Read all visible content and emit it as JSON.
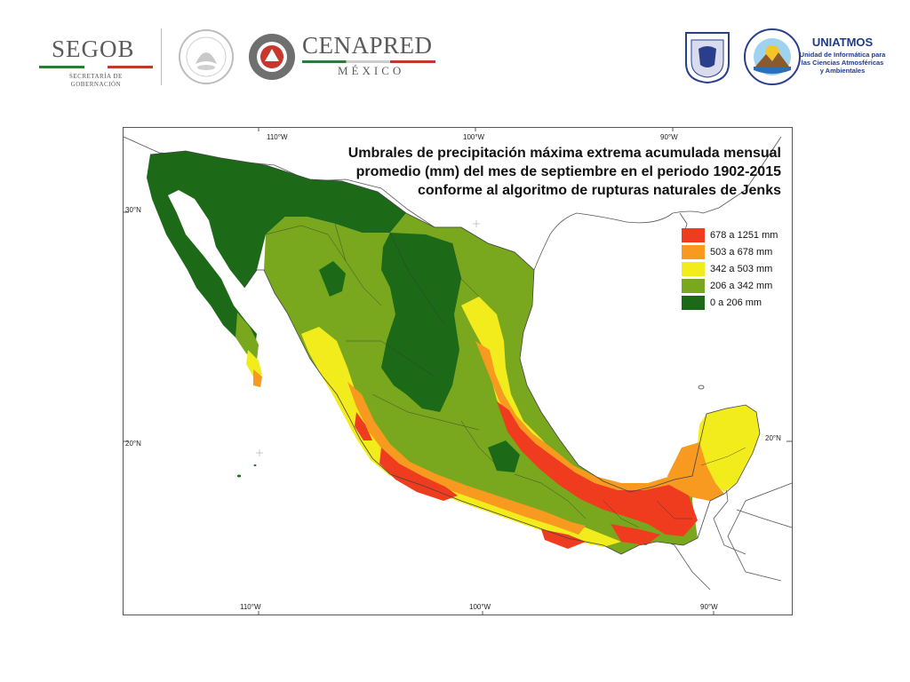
{
  "header": {
    "segob": {
      "title": "SEGOB",
      "subtitle_1": "SECRETARÍA DE",
      "subtitle_2": "GOBERNACIÓN"
    },
    "cenapred": {
      "title": "CENAPRED",
      "subtitle": "MÉXICO"
    },
    "uniatmos": {
      "title": "UNIATMOS",
      "subtitle_1": "Unidad de Informática para",
      "subtitle_2": "las Ciencias Atmosféricas",
      "subtitle_3": "y Ambientales"
    },
    "logos": [
      "segob-logo",
      "mexico-coat-of-arms-seal",
      "cenapred-logo",
      "unam-seal",
      "centro-ciencias-atmosfera-logo"
    ]
  },
  "map": {
    "title_lines": [
      "Umbrales de precipitación máxima extrema acumulada mensual",
      "promedio (mm) del mes de septiembre en el periodo 1902-2015",
      "conforme al algoritmo de rupturas naturales de Jenks"
    ],
    "ticks": {
      "top": [
        "110°W",
        "100°W",
        "90°W"
      ],
      "bottom": [
        "110°W",
        "100°W",
        "90°W"
      ],
      "left": [
        "30°N",
        "20°N"
      ],
      "right": [
        "20°N"
      ]
    },
    "legend": [
      {
        "label": "678 a 1251 mm",
        "color": "#f03c1e"
      },
      {
        "label": "503 a 678 mm",
        "color": "#f79a1f"
      },
      {
        "label": "342 a 503 mm",
        "color": "#f2ec1c"
      },
      {
        "label": "206 a 342 mm",
        "color": "#79a81e"
      },
      {
        "label": "0 a 206 mm",
        "color": "#1c6a17"
      }
    ]
  }
}
